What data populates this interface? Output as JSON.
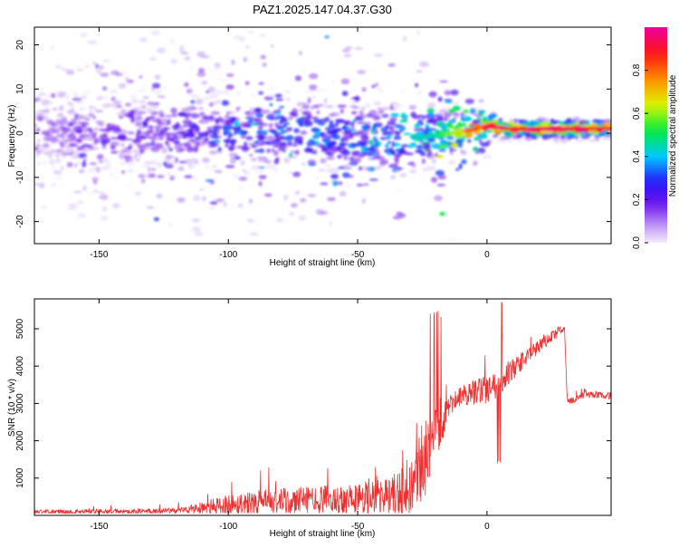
{
  "title": "PAZ1.2025.147.04.37.G30",
  "chart_data": [
    {
      "type": "heatmap",
      "title": "PAZ1.2025.147.04.37.G30",
      "xlabel": "Height of straight line (km)",
      "ylabel": "Frequency (Hz)",
      "xlim": [
        -175,
        48
      ],
      "ylim": [
        -25,
        24
      ],
      "x_ticks": [
        -150,
        -100,
        -50,
        0
      ],
      "x_tick_labels": [
        "-150",
        "-100",
        "-50",
        "0"
      ],
      "y_ticks": [
        -20,
        -10,
        0,
        10,
        20
      ],
      "y_tick_labels": [
        "-20",
        "-10",
        "0",
        "10",
        "20"
      ],
      "colorbar": {
        "label": "Normalized spectral amplitude",
        "range": [
          0,
          1
        ],
        "ticks": [
          0.0,
          0.2,
          0.4,
          0.6,
          0.8
        ],
        "tick_labels": [
          "0.0",
          "0.2",
          "0.4",
          "0.6",
          "0.8"
        ],
        "colormap": "hsv-rainbow"
      },
      "ridge": {
        "x": [
          -175,
          -150,
          -125,
          -100,
          -75,
          -50,
          -40,
          -35,
          -30,
          -25,
          -20,
          -10,
          0,
          10,
          20,
          30,
          48
        ],
        "freq": [
          0.8,
          0.6,
          0.4,
          0.0,
          0.5,
          -0.5,
          -1.2,
          -2.6,
          -0.4,
          -0.8,
          -0.7,
          0.2,
          1.6,
          0.9,
          1.0,
          0.9,
          1.1
        ],
        "peak_amplitude": [
          0.15,
          0.2,
          0.22,
          0.3,
          0.35,
          0.35,
          0.35,
          0.4,
          0.45,
          0.45,
          0.5,
          0.7,
          0.95,
          0.95,
          0.98,
          0.98,
          0.9
        ]
      },
      "grid": false
    },
    {
      "type": "line",
      "xlabel": "Height of straight line (km)",
      "ylabel": "SNR (10 * v/v)",
      "xlim": [
        -175,
        48
      ],
      "ylim": [
        0,
        5800
      ],
      "x_ticks": [
        -150,
        -100,
        -50,
        0
      ],
      "x_tick_labels": [
        "-150",
        "-100",
        "-50",
        "0"
      ],
      "y_ticks": [
        1000,
        2000,
        3000,
        4000,
        5000
      ],
      "y_tick_labels": [
        "1000",
        "2000",
        "3000",
        "4000",
        "5000"
      ],
      "line_color": "#ee3030",
      "envelope": {
        "x": [
          -175,
          -160,
          -140,
          -120,
          -110,
          -100,
          -90,
          -80,
          -70,
          -60,
          -50,
          -40,
          -30,
          -27,
          -25,
          -22,
          -20,
          -15,
          -10,
          -5,
          0,
          5,
          10,
          20,
          30,
          31,
          35,
          40,
          48
        ],
        "base": [
          100,
          100,
          100,
          120,
          200,
          280,
          330,
          350,
          400,
          430,
          450,
          500,
          600,
          900,
          1500,
          1800,
          2000,
          2900,
          3200,
          3300,
          3400,
          3550,
          3900,
          4500,
          5050,
          3050,
          3150,
          3250,
          3200
        ],
        "noise": [
          60,
          60,
          70,
          90,
          160,
          300,
          350,
          380,
          380,
          380,
          420,
          500,
          700,
          900,
          1100,
          1100,
          1000,
          300,
          250,
          350,
          400,
          400,
          300,
          200,
          120,
          100,
          100,
          100,
          100
        ]
      },
      "grid": false
    }
  ]
}
